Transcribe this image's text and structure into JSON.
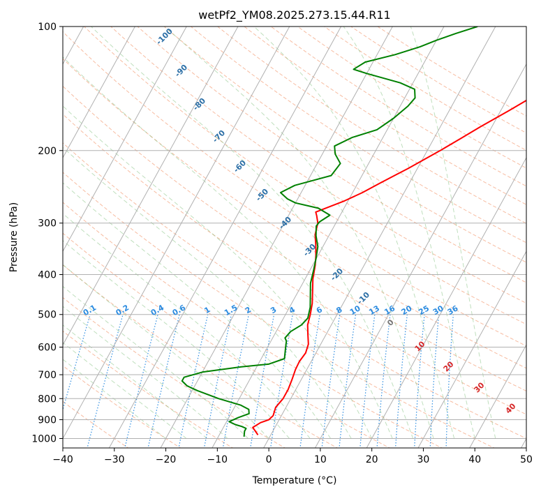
{
  "chart_data": {
    "type": "line",
    "title": "wetPf2_YM08.2025.273.15.44.R11",
    "xlabel": "Temperature (°C)",
    "ylabel": "Pressure (hPa)",
    "xlim": [
      -40,
      50
    ],
    "ylim": [
      1050,
      100
    ],
    "y_scale": "log",
    "grid": true,
    "x_ticks": [
      "−40",
      "−30",
      "−20",
      "−10",
      "0",
      "10",
      "20",
      "30",
      "40",
      "50"
    ],
    "y_ticks": [
      "100",
      "200",
      "300",
      "400",
      "500",
      "600",
      "700",
      "800",
      "900",
      "1000"
    ],
    "skewt_background": {
      "dry_adiabat_labels": [
        "-100",
        "-90",
        "-80",
        "-70",
        "-60",
        "-50",
        "-40",
        "-30",
        "-20",
        "-10",
        "0"
      ],
      "mixing_ratio_labels": [
        "0.1",
        "0.2",
        "0.4",
        "0.6",
        "1",
        "1.5",
        "2",
        "3",
        "4",
        "6",
        "8",
        "10",
        "13",
        "16",
        "20",
        "25",
        "30",
        "36"
      ],
      "moist_adiabat_labels": [
        "0",
        "10",
        "20",
        "30",
        "40"
      ]
    },
    "series": [
      {
        "color": "#ff0000",
        "points": [
          [
            -2.5,
            980
          ],
          [
            -4.3,
            940
          ],
          [
            -3.3,
            915
          ],
          [
            -2.0,
            900
          ],
          [
            -1.6,
            880
          ],
          [
            -2.0,
            840
          ],
          [
            -1.5,
            800
          ],
          [
            -1.5,
            760
          ],
          [
            -1.8,
            720
          ],
          [
            -2.2,
            680
          ],
          [
            -2.3,
            650
          ],
          [
            -2.0,
            620
          ],
          [
            -2.4,
            590
          ],
          [
            -3.5,
            560
          ],
          [
            -4.6,
            530
          ],
          [
            -5.2,
            500
          ],
          [
            -6.0,
            470
          ],
          [
            -7.2,
            440
          ],
          [
            -8.5,
            410
          ],
          [
            -9.5,
            380
          ],
          [
            -10.4,
            360
          ],
          [
            -11.5,
            340
          ],
          [
            -12.8,
            320
          ],
          [
            -13.5,
            300
          ],
          [
            -14.5,
            288
          ],
          [
            -15.1,
            282
          ],
          [
            -12.8,
            273
          ],
          [
            -10.7,
            265
          ],
          [
            -8.1,
            253
          ],
          [
            -5.7,
            240
          ],
          [
            -3.5,
            229
          ],
          [
            -1.8,
            221
          ],
          [
            0.2,
            211
          ],
          [
            2.5,
            200
          ],
          [
            5.2,
            187
          ],
          [
            7.8,
            175
          ],
          [
            11.6,
            160
          ],
          [
            15.0,
            147
          ],
          [
            18.8,
            136
          ],
          [
            22.6,
            126
          ],
          [
            24.6,
            119
          ],
          [
            27.7,
            111
          ],
          [
            30.5,
            104
          ],
          [
            32.5,
            100
          ]
        ]
      },
      {
        "color": "#008000",
        "points": [
          [
            -5,
            990
          ],
          [
            -5.5,
            960
          ],
          [
            -5.5,
            945
          ],
          [
            -6.5,
            935
          ],
          [
            -8.0,
            925
          ],
          [
            -9.5,
            910
          ],
          [
            -8.2,
            890
          ],
          [
            -6.5,
            870
          ],
          [
            -7.0,
            850
          ],
          [
            -9.0,
            830
          ],
          [
            -14.0,
            800
          ],
          [
            -19.0,
            765
          ],
          [
            -21.5,
            745
          ],
          [
            -23.0,
            725
          ],
          [
            -23.0,
            710
          ],
          [
            -20.0,
            690
          ],
          [
            -13.0,
            670
          ],
          [
            -8.0,
            660
          ],
          [
            -5.5,
            640
          ],
          [
            -6.5,
            600
          ],
          [
            -7.0,
            580
          ],
          [
            -7.6,
            570
          ],
          [
            -7.2,
            550
          ],
          [
            -5.8,
            530
          ],
          [
            -5.3,
            510
          ],
          [
            -6.0,
            480
          ],
          [
            -7.2,
            450
          ],
          [
            -8.5,
            420
          ],
          [
            -9.3,
            390
          ],
          [
            -10.1,
            365
          ],
          [
            -11.0,
            342
          ],
          [
            -12.5,
            322
          ],
          [
            -13.5,
            305
          ],
          [
            -13.3,
            298
          ],
          [
            -12.0,
            287
          ],
          [
            -15.0,
            276
          ],
          [
            -20.0,
            268
          ],
          [
            -22.0,
            262
          ],
          [
            -24.0,
            253
          ],
          [
            -22.0,
            243
          ],
          [
            -16.0,
            230
          ],
          [
            -15.5,
            215
          ],
          [
            -17.5,
            204
          ],
          [
            -18.5,
            195
          ],
          [
            -16.0,
            186
          ],
          [
            -12.0,
            178
          ],
          [
            -10.0,
            167
          ],
          [
            -8.5,
            156
          ],
          [
            -8.0,
            149
          ],
          [
            -9.0,
            142
          ],
          [
            -12.5,
            137
          ],
          [
            -20.0,
            130
          ],
          [
            -23.0,
            127
          ],
          [
            -21.5,
            122
          ],
          [
            -16.5,
            117
          ],
          [
            -12.5,
            112
          ],
          [
            -10.0,
            108
          ],
          [
            -7.0,
            104
          ],
          [
            -3.5,
            100
          ]
        ]
      }
    ]
  }
}
